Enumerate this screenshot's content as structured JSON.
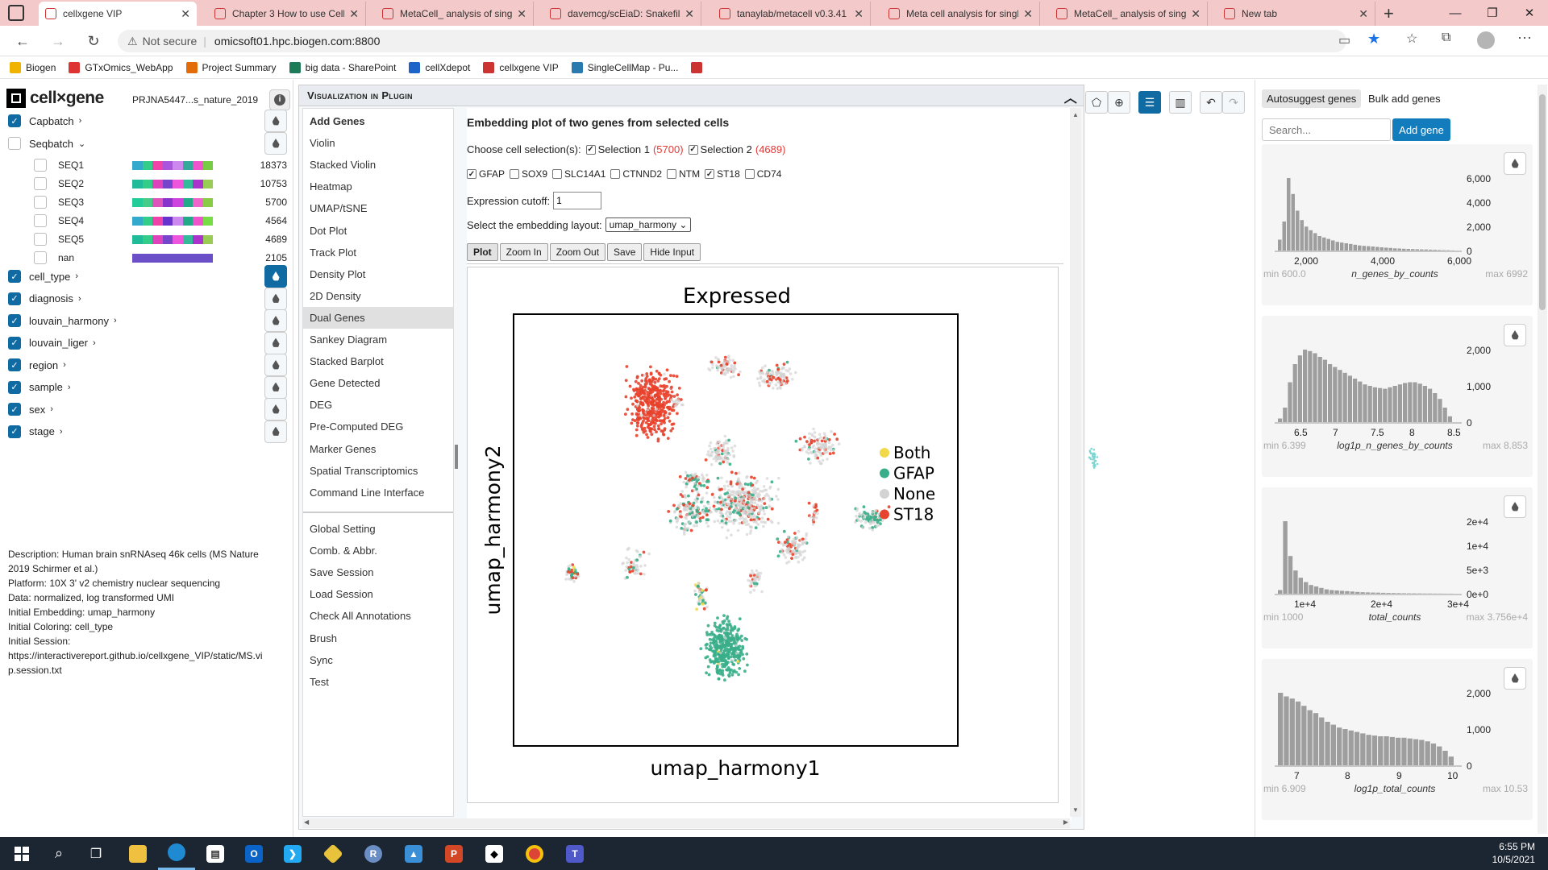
{
  "browser": {
    "tabs": [
      {
        "title": "cellxgene VIP",
        "active": true
      },
      {
        "title": "Chapter 3 How to use Cell",
        "active": false
      },
      {
        "title": "MetaCell_ analysis of singl",
        "active": false
      },
      {
        "title": "davemcg/scEiaD: Snakefile",
        "active": false
      },
      {
        "title": "tanaylab/metacell v0.3.41",
        "active": false
      },
      {
        "title": "Meta cell analysis for singl",
        "active": false
      },
      {
        "title": "MetaCell_ analysis of singl",
        "active": false
      },
      {
        "title": "New tab",
        "active": false
      }
    ],
    "security_label": "Not secure",
    "url": "omicsoft01.hpc.biogen.com:8800",
    "bookmarks": [
      "Biogen",
      "GTxOmics_WebApp",
      "Project Summary",
      "big data - SharePoint",
      "cellXdepot",
      "cellxgene VIP",
      "SingleCellMap - Pu..."
    ]
  },
  "app": {
    "logo_text": "cell×gene",
    "dataset_name": "PRJNA5447...s_nature_2019",
    "categories": [
      {
        "label": "Capbatch",
        "checked": true,
        "expanded": false
      },
      {
        "label": "Seqbatch",
        "checked": false,
        "expanded": true
      }
    ],
    "seqbatch_values": [
      {
        "label": "SEQ1",
        "count": "18373"
      },
      {
        "label": "SEQ2",
        "count": "10753"
      },
      {
        "label": "SEQ3",
        "count": "5700"
      },
      {
        "label": "SEQ4",
        "count": "4564"
      },
      {
        "label": "SEQ5",
        "count": "4689"
      },
      {
        "label": "nan",
        "count": "2105"
      }
    ],
    "more_categories": [
      {
        "label": "cell_type",
        "checked": true,
        "colored": true
      },
      {
        "label": "diagnosis",
        "checked": true
      },
      {
        "label": "louvain_harmony",
        "checked": true
      },
      {
        "label": "louvain_liger",
        "checked": true
      },
      {
        "label": "region",
        "checked": true
      },
      {
        "label": "sample",
        "checked": true
      },
      {
        "label": "sex",
        "checked": true
      },
      {
        "label": "stage",
        "checked": true
      }
    ],
    "description_lines": [
      "Description: Human brain snRNAseq 46k cells (MS Nature 2019 Schirmer et al.)",
      "Platform: 10X 3' v2 chemistry nuclear sequencing",
      "Data: normalized, log transformed UMI",
      "Initial Embedding: umap_harmony",
      "Initial Coloring: cell_type",
      "Initial Session:",
      "https://interactivereport.github.io/cellxgene_VIP/static/MS.vip.session.txt"
    ]
  },
  "plugin": {
    "title": "Visualization in Plugin",
    "menu": [
      "Add Genes",
      "Violin",
      "Stacked Violin",
      "Heatmap",
      "UMAP/tSNE",
      "Dot Plot",
      "Track Plot",
      "Density Plot",
      "2D Density",
      "Dual Genes",
      "Sankey Diagram",
      "Stacked Barplot",
      "Gene Detected",
      "DEG",
      "Pre-Computed DEG",
      "Marker Genes",
      "Spatial Transcriptomics",
      "Command Line Interface"
    ],
    "menu2": [
      "Global Setting",
      "Comb. & Abbr.",
      "Save Session",
      "Load Session",
      "Check All Annotations",
      "Brush",
      "Sync",
      "Test"
    ],
    "selected_menu": "Dual Genes",
    "heading": "Embedding plot of two genes from selected cells",
    "choose_label": "Choose cell selection(s):",
    "selection1_label": "Selection 1",
    "selection1_count": "(5700)",
    "selection2_label": "Selection 2",
    "selection2_count": "(4689)",
    "genes": [
      {
        "name": "GFAP",
        "checked": true
      },
      {
        "name": "SOX9",
        "checked": false
      },
      {
        "name": "SLC14A1",
        "checked": false
      },
      {
        "name": "CTNND2",
        "checked": false
      },
      {
        "name": "NTM",
        "checked": false
      },
      {
        "name": "ST18",
        "checked": true
      },
      {
        "name": "CD74",
        "checked": false
      }
    ],
    "cutoff_label": "Expression cutoff:",
    "cutoff_value": "1",
    "layout_label": "Select the embedding layout:",
    "layout_value": "umap_harmony",
    "buttons": [
      "Plot",
      "Zoom In",
      "Zoom Out",
      "Save",
      "Hide Input"
    ]
  },
  "chart_data": {
    "type": "scatter",
    "title": "Expressed",
    "xlabel": "umap_harmony1",
    "ylabel": "umap_harmony2",
    "legend": [
      {
        "name": "Both",
        "color": "#f2d94a"
      },
      {
        "name": "GFAP",
        "color": "#3aae8a"
      },
      {
        "name": "None",
        "color": "#d3d3d3"
      },
      {
        "name": "ST18",
        "color": "#e8432e"
      }
    ],
    "legend_position": "right",
    "grid": false
  },
  "right": {
    "tab_autosuggest": "Autosuggest genes",
    "tab_bulk": "Bulk add genes",
    "search_placeholder": "Search...",
    "add_gene": "Add gene",
    "histograms": [
      {
        "name": "n_genes_by_counts",
        "min": "min 600.0",
        "max": "max 6992",
        "xticks": [
          "2,000",
          "4,000",
          "6,000"
        ],
        "yticks": [
          "6,000",
          "4,000",
          "2,000",
          "0"
        ]
      },
      {
        "name": "log1p_n_genes_by_counts",
        "min": "min 6.399",
        "max": "max 8.853",
        "xticks": [
          "6.5",
          "7",
          "7.5",
          "8",
          "8.5"
        ],
        "yticks": [
          "2,000",
          "1,000",
          "0"
        ]
      },
      {
        "name": "total_counts",
        "min": "min 1000",
        "max": "max 3.756e+4",
        "xticks": [
          "1e+4",
          "2e+4",
          "3e+4"
        ],
        "yticks": [
          "2e+4",
          "1e+4",
          "5e+3",
          "0e+0"
        ]
      },
      {
        "name": "log1p_total_counts",
        "min": "min 6.909",
        "max": "max 10.53",
        "xticks": [
          "7",
          "8",
          "9",
          "10"
        ],
        "yticks": [
          "2,000",
          "1,000",
          "0"
        ]
      }
    ]
  },
  "taskbar": {
    "time": "6:55 PM",
    "date": "10/5/2021"
  }
}
